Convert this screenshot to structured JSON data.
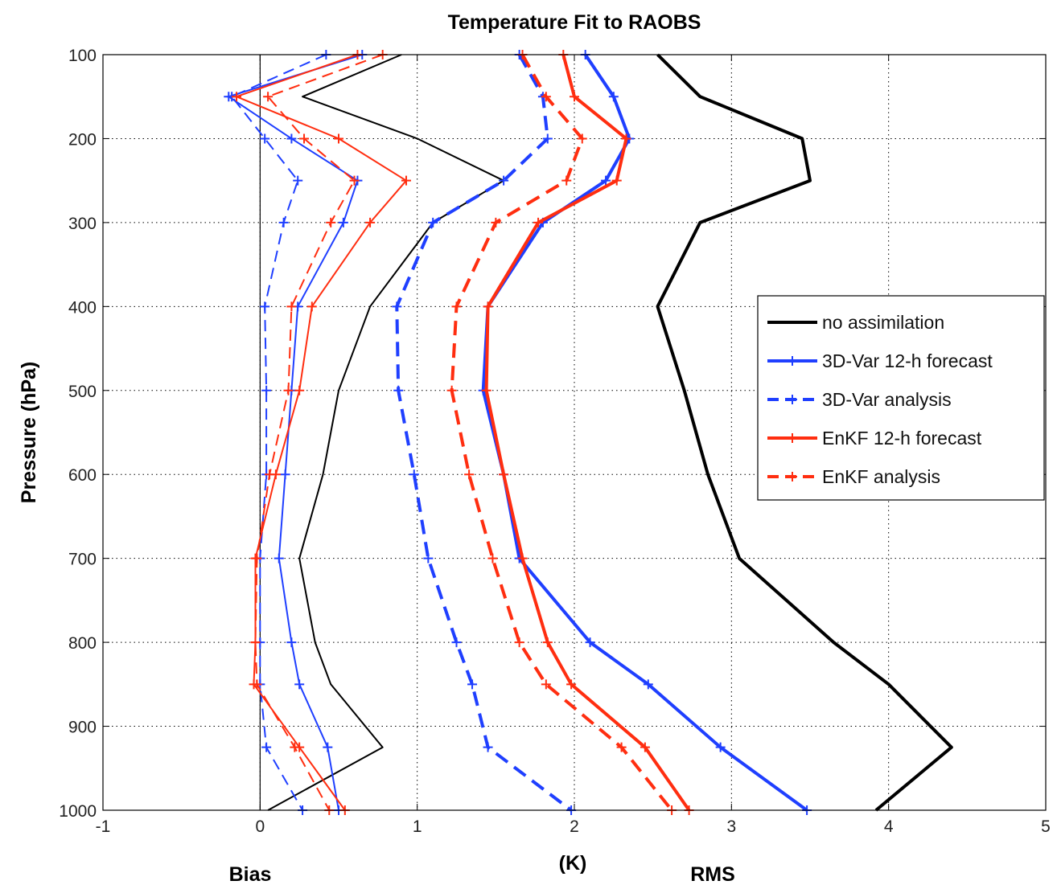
{
  "chart_data": {
    "type": "line",
    "title": "Temperature Fit to RAOBS",
    "ylabel": "Pressure (hPa)",
    "xlabel": "(K)",
    "xlabel_left": "Bias",
    "xlabel_right": "RMS",
    "xlim": [
      -1,
      5
    ],
    "ylim": [
      100,
      1000
    ],
    "y_reversed": true,
    "xticks": [
      -1,
      0,
      1,
      2,
      3,
      4,
      5
    ],
    "yticks": [
      100,
      200,
      300,
      400,
      500,
      600,
      700,
      800,
      900,
      1000
    ],
    "grid": true,
    "legend_position": "right",
    "series": [
      {
        "name": "no assimilation",
        "metric": "Bias",
        "color": "#000000",
        "style": "solid",
        "width": "thin",
        "markers": false,
        "points": [
          [
            0.9,
            100
          ],
          [
            0.27,
            150
          ],
          [
            1.0,
            200
          ],
          [
            1.55,
            250
          ],
          [
            1.1,
            300
          ],
          [
            0.7,
            400
          ],
          [
            0.5,
            500
          ],
          [
            0.4,
            600
          ],
          [
            0.25,
            700
          ],
          [
            0.35,
            800
          ],
          [
            0.45,
            850
          ],
          [
            0.78,
            925
          ],
          [
            0.05,
            1000
          ]
        ]
      },
      {
        "name": "3D-Var 12-h forecast",
        "metric": "Bias",
        "color": "#1f3fff",
        "style": "solid",
        "width": "thin",
        "markers": true,
        "points": [
          [
            0.65,
            100
          ],
          [
            -0.2,
            150
          ],
          [
            0.2,
            200
          ],
          [
            0.62,
            250
          ],
          [
            0.53,
            300
          ],
          [
            0.24,
            400
          ],
          [
            0.2,
            500
          ],
          [
            0.16,
            600
          ],
          [
            0.12,
            700
          ],
          [
            0.2,
            800
          ],
          [
            0.25,
            850
          ],
          [
            0.43,
            925
          ],
          [
            0.5,
            1000
          ]
        ]
      },
      {
        "name": "3D-Var analysis",
        "metric": "Bias",
        "color": "#1f3fff",
        "style": "dashed",
        "width": "thin",
        "markers": true,
        "points": [
          [
            0.42,
            100
          ],
          [
            -0.18,
            150
          ],
          [
            0.03,
            200
          ],
          [
            0.24,
            250
          ],
          [
            0.15,
            300
          ],
          [
            0.03,
            400
          ],
          [
            0.04,
            500
          ],
          [
            0.04,
            600
          ],
          [
            0.0,
            700
          ],
          [
            0.0,
            800
          ],
          [
            0.0,
            850
          ],
          [
            0.04,
            925
          ],
          [
            0.27,
            1000
          ]
        ]
      },
      {
        "name": "EnKF 12-h forecast",
        "metric": "Bias",
        "color": "#ff2e10",
        "style": "solid",
        "width": "thin",
        "markers": true,
        "points": [
          [
            0.62,
            100
          ],
          [
            -0.15,
            150
          ],
          [
            0.5,
            200
          ],
          [
            0.93,
            250
          ],
          [
            0.7,
            300
          ],
          [
            0.33,
            400
          ],
          [
            0.25,
            500
          ],
          [
            0.1,
            600
          ],
          [
            -0.03,
            700
          ],
          [
            -0.03,
            800
          ],
          [
            -0.04,
            850
          ],
          [
            0.25,
            925
          ],
          [
            0.54,
            1000
          ]
        ]
      },
      {
        "name": "EnKF analysis",
        "metric": "Bias",
        "color": "#ff2e10",
        "style": "dashed",
        "width": "thin",
        "markers": true,
        "points": [
          [
            0.78,
            100
          ],
          [
            0.05,
            150
          ],
          [
            0.28,
            200
          ],
          [
            0.6,
            250
          ],
          [
            0.45,
            300
          ],
          [
            0.2,
            400
          ],
          [
            0.18,
            500
          ],
          [
            0.06,
            600
          ],
          [
            -0.02,
            700
          ],
          [
            -0.03,
            800
          ],
          [
            -0.02,
            850
          ],
          [
            0.22,
            925
          ],
          [
            0.44,
            1000
          ]
        ]
      },
      {
        "name": "no assimilation",
        "metric": "RMS",
        "color": "#000000",
        "style": "solid",
        "width": "thick",
        "markers": false,
        "points": [
          [
            2.53,
            100
          ],
          [
            2.8,
            150
          ],
          [
            3.45,
            200
          ],
          [
            3.5,
            250
          ],
          [
            2.8,
            300
          ],
          [
            2.53,
            400
          ],
          [
            2.7,
            500
          ],
          [
            2.85,
            600
          ],
          [
            3.05,
            700
          ],
          [
            3.65,
            800
          ],
          [
            4.0,
            850
          ],
          [
            4.4,
            925
          ],
          [
            3.92,
            1000
          ]
        ]
      },
      {
        "name": "3D-Var 12-h forecast",
        "metric": "RMS",
        "color": "#1f3fff",
        "style": "solid",
        "width": "thick",
        "markers": true,
        "points": [
          [
            2.07,
            100
          ],
          [
            2.25,
            150
          ],
          [
            2.35,
            200
          ],
          [
            2.2,
            250
          ],
          [
            1.8,
            300
          ],
          [
            1.45,
            400
          ],
          [
            1.42,
            500
          ],
          [
            1.55,
            600
          ],
          [
            1.65,
            700
          ],
          [
            2.1,
            800
          ],
          [
            2.47,
            850
          ],
          [
            2.93,
            925
          ],
          [
            3.48,
            1000
          ]
        ]
      },
      {
        "name": "3D-Var analysis",
        "metric": "RMS",
        "color": "#1f3fff",
        "style": "dashed",
        "width": "thick",
        "markers": true,
        "points": [
          [
            1.65,
            100
          ],
          [
            1.8,
            150
          ],
          [
            1.83,
            200
          ],
          [
            1.55,
            250
          ],
          [
            1.1,
            300
          ],
          [
            0.87,
            400
          ],
          [
            0.88,
            500
          ],
          [
            0.98,
            600
          ],
          [
            1.07,
            700
          ],
          [
            1.25,
            800
          ],
          [
            1.35,
            850
          ],
          [
            1.45,
            925
          ],
          [
            1.98,
            1000
          ]
        ]
      },
      {
        "name": "EnKF 12-h forecast",
        "metric": "RMS",
        "color": "#ff2e10",
        "style": "solid",
        "width": "thick",
        "markers": true,
        "points": [
          [
            1.93,
            100
          ],
          [
            2.0,
            150
          ],
          [
            2.33,
            200
          ],
          [
            2.27,
            250
          ],
          [
            1.77,
            300
          ],
          [
            1.45,
            400
          ],
          [
            1.44,
            500
          ],
          [
            1.55,
            600
          ],
          [
            1.67,
            700
          ],
          [
            1.83,
            800
          ],
          [
            1.98,
            850
          ],
          [
            2.45,
            925
          ],
          [
            2.73,
            1000
          ]
        ]
      },
      {
        "name": "EnKF analysis",
        "metric": "RMS",
        "color": "#ff2e10",
        "style": "dashed",
        "width": "thick",
        "markers": true,
        "points": [
          [
            1.67,
            100
          ],
          [
            1.82,
            150
          ],
          [
            2.05,
            200
          ],
          [
            1.95,
            250
          ],
          [
            1.5,
            300
          ],
          [
            1.25,
            400
          ],
          [
            1.22,
            500
          ],
          [
            1.33,
            600
          ],
          [
            1.48,
            700
          ],
          [
            1.65,
            800
          ],
          [
            1.82,
            850
          ],
          [
            2.3,
            925
          ],
          [
            2.62,
            1000
          ]
        ]
      }
    ],
    "legend": [
      {
        "label": "no assimilation",
        "color": "#000000",
        "style": "solid",
        "markers": false
      },
      {
        "label": "3D-Var 12-h forecast",
        "color": "#1f3fff",
        "style": "solid",
        "markers": true
      },
      {
        "label": "3D-Var analysis",
        "color": "#1f3fff",
        "style": "dashed",
        "markers": true
      },
      {
        "label": "EnKF 12-h forecast",
        "color": "#ff2e10",
        "style": "solid",
        "markers": true
      },
      {
        "label": "EnKF analysis",
        "color": "#ff2e10",
        "style": "dashed",
        "markers": true
      }
    ]
  }
}
